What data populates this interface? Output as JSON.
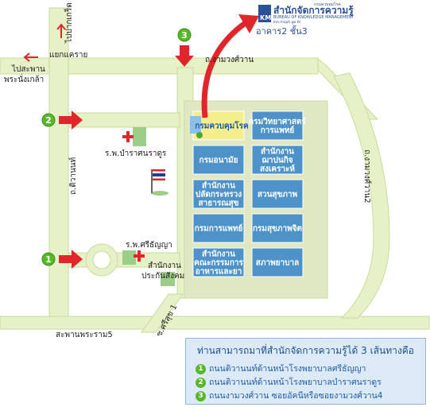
{
  "header": {
    "logo_title": "สำนักจัดการความรู้",
    "logo_subtitle": "BUREAU OF KNOWLEDGE MANAGEMENT",
    "logo_url": "km.moph.go.th",
    "logo_mark": "KM",
    "logo_small": "กรมควบคุมโรค",
    "location": "อาคาร2 ชั้น3"
  },
  "roads": {
    "to_pak_kret": "ไปปากเกร็ด",
    "khae_rai": "แยกแคราย",
    "to_saphan_phra_nang_klao": "ไปสะพาน\nพระนั่งเกล้า",
    "ngam_wong_wan": "ถ.งามวงศ์วาน",
    "tiwanon": "ถ.ติวานนท์",
    "ngam_wong_wan_2": "ถ.งามวงศ์วาน2",
    "soi_srisuk_1": "ซ.ศรีสุข 1",
    "rama5_bridge": "สะพานพระราม5"
  },
  "places": {
    "bamrasnaradura": "ร.พ.บำราศนราดูร",
    "srithanya": "ร.พ.ศรีธัญญา",
    "sso_line1": "สำนักงาน",
    "sso_line2": "ประกันสังคม"
  },
  "markers": [
    "1",
    "2",
    "3"
  ],
  "buildings": [
    {
      "lines": [
        "กรมควบคุมโรค"
      ],
      "highlight": true
    },
    {
      "lines": [
        "กรมวิทยาศาสตร์",
        "การแพทย์"
      ],
      "highlight": false
    },
    {
      "lines": [
        "กรมอนามัย"
      ],
      "highlight": false
    },
    {
      "lines": [
        "สำนักงาน",
        "ฌาปนกิจ",
        "สงเคราะห์"
      ],
      "highlight": false
    },
    {
      "lines": [
        "สำนักงาน",
        "ปลัดกระทรวง",
        "สาธารณสุข"
      ],
      "highlight": false
    },
    {
      "lines": [
        "สวนสุขภาพ"
      ],
      "highlight": false
    },
    {
      "lines": [
        "กรมการแพทย์"
      ],
      "highlight": false
    },
    {
      "lines": [
        "กรมสุขภาพจิต"
      ],
      "highlight": false
    },
    {
      "lines": [
        "สำนักงาน",
        "คณะกรรมการ",
        "อาหารและยา"
      ],
      "highlight": false
    },
    {
      "lines": [
        "สภาพยาบาล"
      ],
      "highlight": false
    }
  ],
  "legend": {
    "title": "ท่านสามารถมาที่สำนักจัดการความรู้ได้ 3 เส้นทางคือ",
    "items": [
      {
        "num": "1",
        "text": "ถนนติวานนท์ด้านหน้าโรงพยาบาลศรีธัญญา"
      },
      {
        "num": "2",
        "text": "ถนนติวานนท์ด้านหน้าโรงพยาบาลบำราศนราดูร"
      },
      {
        "num": "3",
        "text": "ถนนงามวงศ์วาน  ซอยอัคนีหรือซอยงามวงศ์วาน4"
      }
    ]
  },
  "colors": {
    "road": "#e4f0c4",
    "road_edge": "#c9dc9a",
    "block": "#dfe8c2",
    "building": "#4d93c9",
    "building_highlight": "#f4ee8c",
    "arrow": "#e0262a",
    "marker": "#58b82a",
    "legend_bg": "#dbeaf6"
  }
}
